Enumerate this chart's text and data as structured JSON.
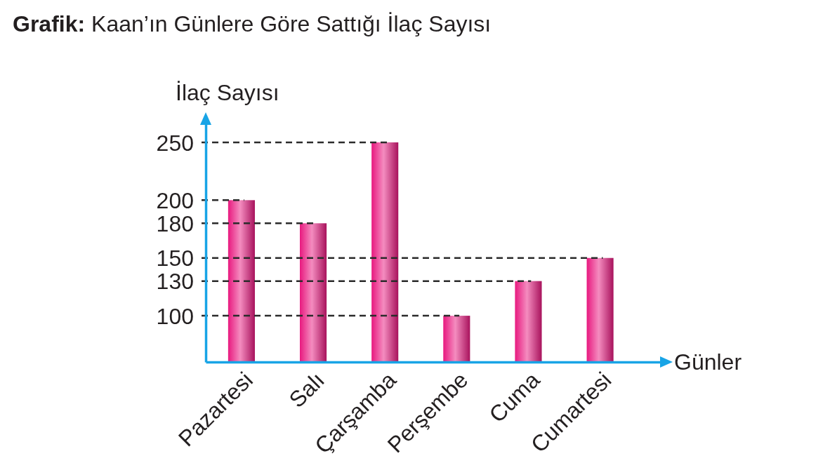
{
  "chart_data": {
    "type": "bar",
    "title": "Grafik: Kaan’ın Günlere Göre Sattığı İlaç Sayısı",
    "xlabel": "Günler",
    "ylabel": "İlaç Sayısı",
    "categories": [
      "Pazartesi",
      "Salı",
      "Çarşamba",
      "Perşembe",
      "Cuma",
      "Cumartesi"
    ],
    "values": [
      200,
      180,
      250,
      100,
      130,
      150
    ],
    "color": "#e8197f",
    "ylim": [
      60,
      270
    ],
    "yticks": [
      100,
      130,
      150,
      180,
      200,
      250
    ],
    "ref_lines": [
      {
        "axis": "y",
        "value": 250,
        "color": "#2b2b2b",
        "line_style": "dashed"
      },
      {
        "axis": "y",
        "value": 200,
        "color": "#2b2b2b",
        "line_style": "dashed"
      },
      {
        "axis": "y",
        "value": 180,
        "color": "#2b2b2b",
        "line_style": "dashed"
      },
      {
        "axis": "y",
        "value": 150,
        "color": "#2b2b2b",
        "line_style": "dashed"
      },
      {
        "axis": "y",
        "value": 130,
        "color": "#2b2b2b",
        "line_style": "dashed"
      },
      {
        "axis": "y",
        "value": 100,
        "color": "#2b2b2b",
        "line_style": "dashed"
      }
    ]
  }
}
